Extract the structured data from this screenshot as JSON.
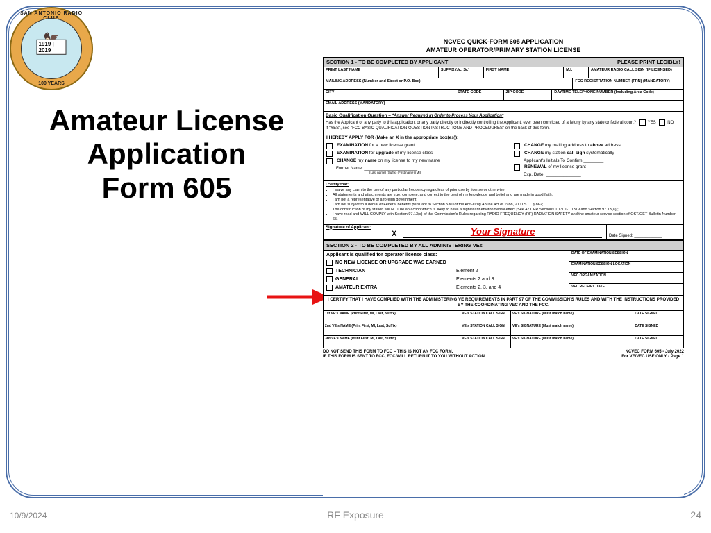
{
  "logo": {
    "top": "SAN ANTONIO RADIO CLUB",
    "bot": "100 YEARS",
    "years": "1919 | 2019",
    "motto": "EDUCARE ET MINISTRARE"
  },
  "title_lines": "Amateur License Application Form 605",
  "arrow_color": "#e81313",
  "form": {
    "header1": "NCVEC QUICK-FORM 605 APPLICATION",
    "header2": "AMATEUR OPERATOR/PRIMARY STATION  LICENSE",
    "section1": {
      "label": "SECTION 1 - TO BE COMPLETED BY APPLICANT",
      "right": "PLEASE PRINT LEGIBLY!"
    },
    "row1": [
      "PRINT LAST NAME",
      "SUFFIX (Jr., Sr.)",
      "FIRST NAME",
      "M.I.",
      "AMATEUR RADIO CALL SIGN (IF LICENSED)"
    ],
    "row2": [
      "MAILING ADDRESS (Number and Street or P.O. Box)",
      "FCC REGISTRATION NUMBER (FRN) (MANDATORY)"
    ],
    "row3": [
      "CITY",
      "STATE CODE",
      "ZIP CODE",
      "DAYTIME TELEPHONE NUMBER (Including Area Code)"
    ],
    "row4": [
      "EMAIL ADDRESS (MANDATORY)"
    ],
    "bq": {
      "title": "Basic Qualification Question – ",
      "emph": "*Answer Required in Order to Process Your Application*",
      "q": "Has the Applicant or any party to this application, or any party directly or indirectly controlling the Applicant, ever been convicted of a felony by any state or federal court?",
      "yes": "YES",
      "no": "NO",
      "note": "If \"YES\", see \"FCC BASIC QUALIFICATION QUESTION INSTRUCTIONS AND PROCEDURES\" on the back of this form."
    },
    "apply": {
      "lead": "I HEREBY APPLY FOR (Make an X in the appropriate box(es)):",
      "left": [
        "<b>EXAMINATION</b> for a new license grant",
        "<b>EXAMINATION</b> for <b>upgrade</b> of my license class",
        "<b>CHANGE</b> my <b>name</b> on my license to my new name"
      ],
      "left_extra": "Former Name: _______________________",
      "left_extra_sub": "(Last name)   (Suffix)    (First name)    (MI)",
      "right": [
        "<b>CHANGE</b> my mailing address to <b>above</b> address",
        "<b>CHANGE</b> my station <b>call sign</b> systematically",
        "Applicant's Initials To Confirm ________",
        "<b>RENEWAL</b> of my license grant",
        "Exp. Date: ______________"
      ]
    },
    "cert_title": "I certify that:",
    "cert_items": [
      "I waive any claim to the use of any particular frequency regardless of prior use by license or otherwise;",
      "All statements and attachments are true, complete, and correct to the best of my knowledge and belief and are made in good faith;",
      "I am not a representative of a foreign government;",
      "I am not subject to a denial of Federal benefits pursuant to Section 5301of the Anti-Drug Abuse Act of 1988, 21 U.S.C. § 862;",
      "The construction of my station will NOT be an action which is likely to have a significant environmental effect [See 47 CFR Sections 1.1301-1.1319 and Section 97.13(a)];",
      "I have read and WILL COMPLY with Section 97.13(c) of the Commission's Rules regarding RADIO FREQUENCY (RF) RADIATION SAFETY and the amateur service section of OST/OET Bulletin Number 65."
    ],
    "sig_label": "Signature of Applicant:",
    "sig_text": "Your Signature",
    "sig_date": "Date Signed: ____________",
    "section2": "SECTION 2 - TO BE COMPLETED BY ALL ADMINISTERING VEs",
    "sec2_left_title": "Applicant is qualified for operator license class:",
    "sec2_items": [
      {
        "label": "NO NEW LICENSE OR UPGRADE WAS EARNED",
        "elem": ""
      },
      {
        "label": "TECHNICIAN",
        "elem": "Element  2"
      },
      {
        "label": "GENERAL",
        "elem": "Elements 2 and 3"
      },
      {
        "label": "AMATEUR EXTRA",
        "elem": "Elements 2, 3, and 4"
      }
    ],
    "sec2_right": [
      "DATE OF EXAMINATION SESSION",
      "EXAMINATION SESSION LOCATION",
      "VEC ORGANIZATION",
      "VEC RECEIPT DATE"
    ],
    "compliance": "I CERTIFY THAT I HAVE COMPLIED WITH THE ADMINISTERING VE REQUIREMENTS IN PART 97 OF THE COMMISSION'S RULES AND WITH THE INSTRUCTIONS PROVIDED BY THE COORDINATING VEC AND THE FCC.",
    "ve_cols": [
      "VE's NAME  (Print First, MI, Last, Suffix)",
      "VE's STATION CALL SIGN",
      "VE's SIGNATURE (Must match name)",
      "DATE SIGNED"
    ],
    "ve_prefix": [
      "1st",
      "2nd",
      "3rd"
    ],
    "foot_left": "DO NOT SEND THIS FORM TO FCC  –  THIS IS NOT AN FCC FORM.\nIF THIS FORM IS SENT TO FCC, FCC WILL RETURN IT TO YOU WITHOUT ACTION.",
    "foot_right": "NCVEC FORM 605 - July 2022\nFor VE/VEC USE ONLY - Page 1"
  },
  "footer": {
    "date": "10/9/2024",
    "center": "RF Exposure",
    "page": "24"
  }
}
